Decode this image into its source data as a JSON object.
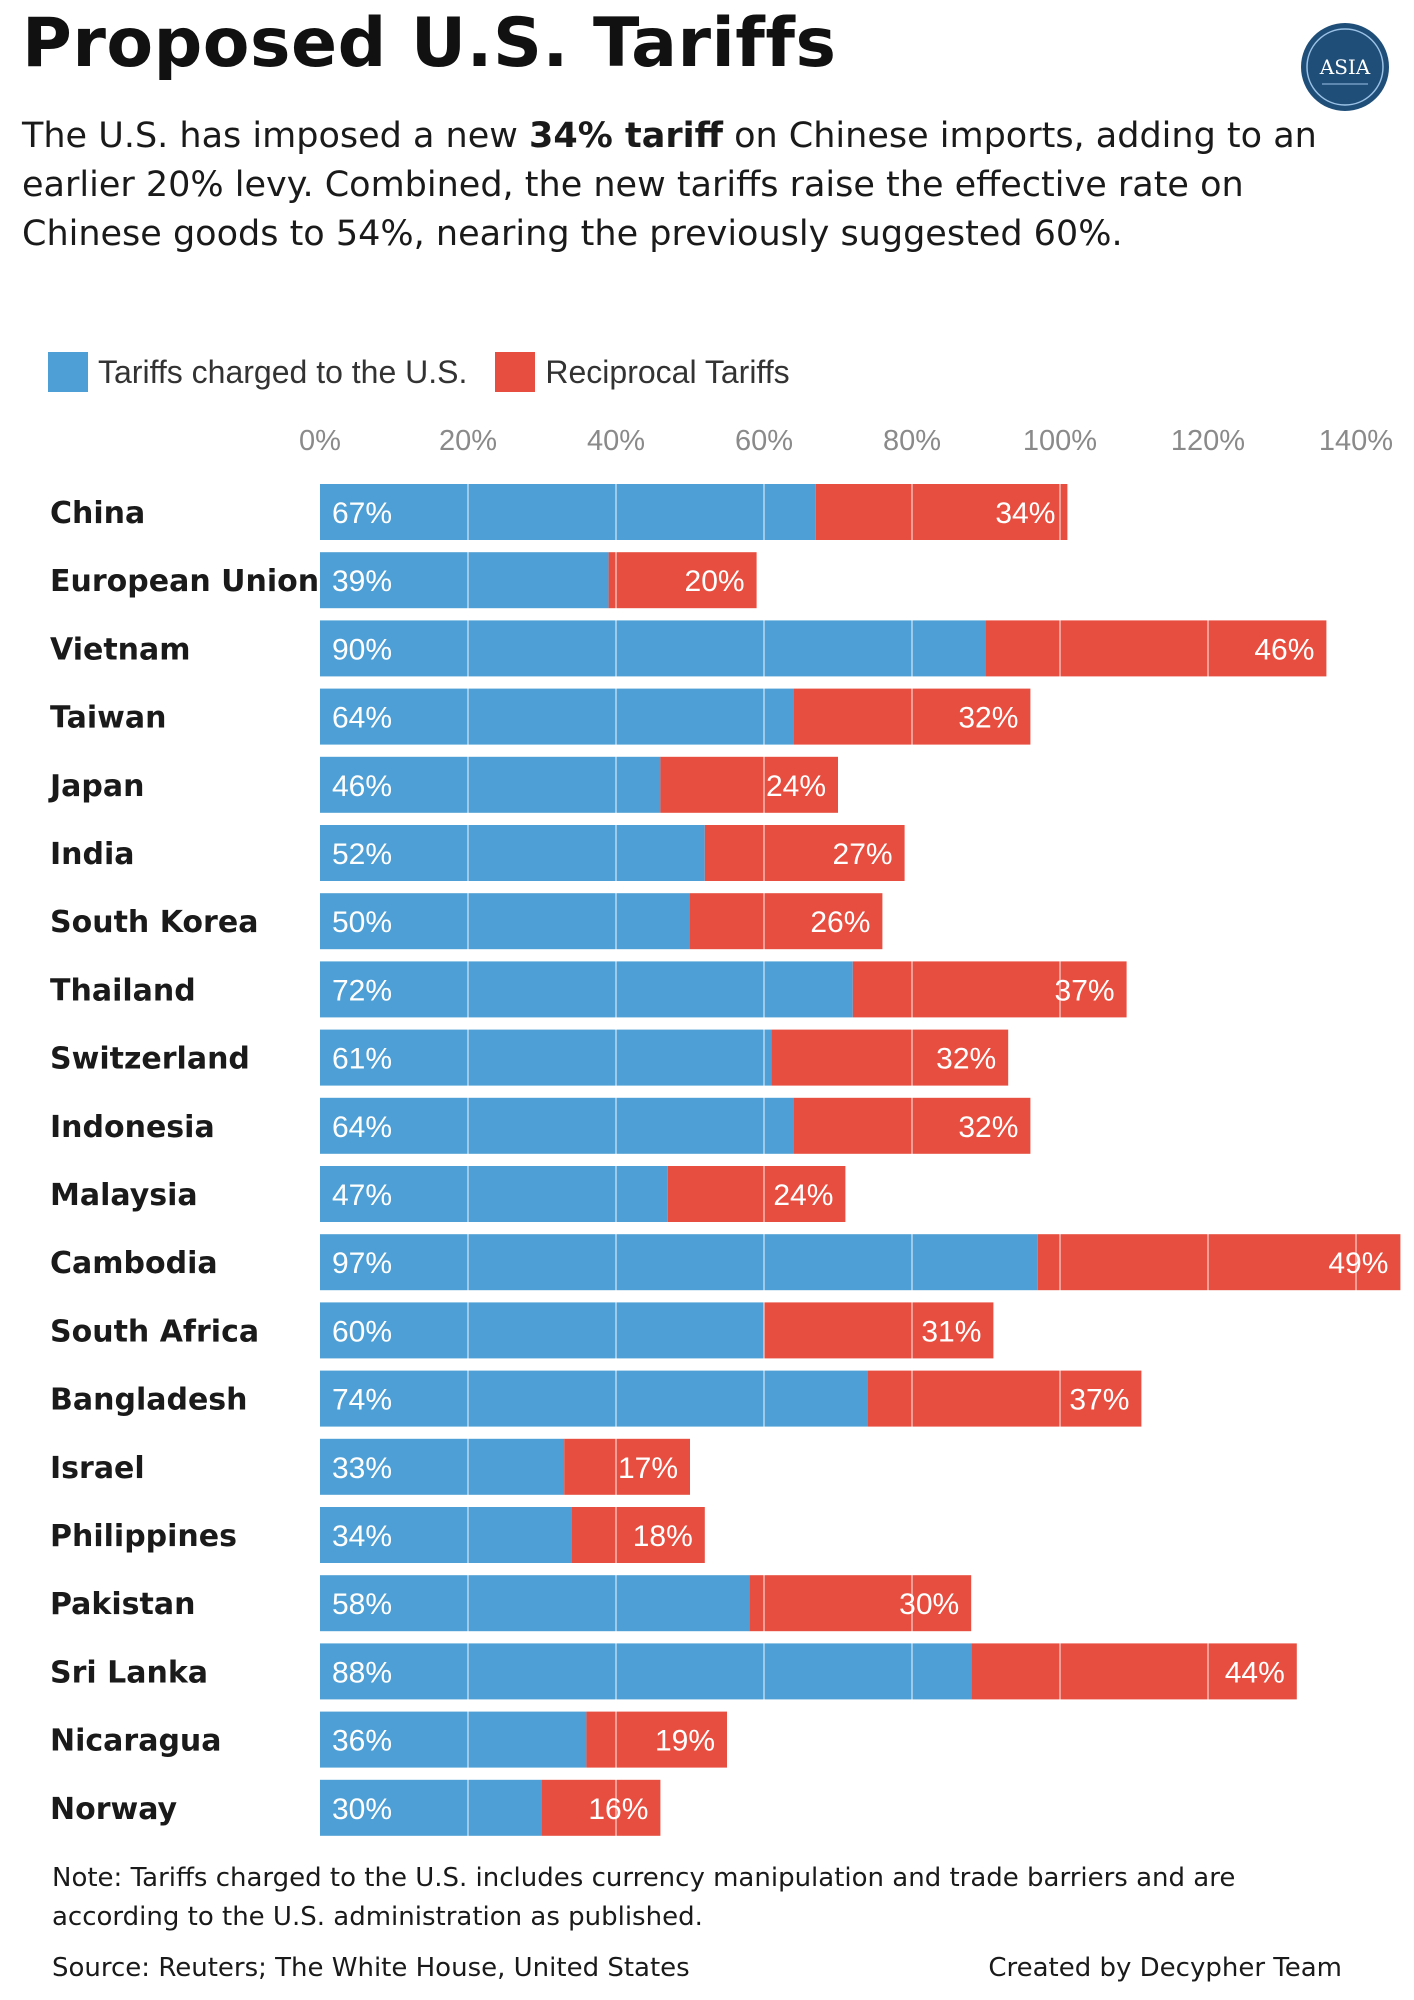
{
  "header": {
    "title": "Proposed U.S. Tariffs",
    "logo_text": "ASIA",
    "subtitle_part1": "The U.S. has imposed a new ",
    "subtitle_bold": "34% tariff",
    "subtitle_part2": " on Chinese imports, adding to an earlier 20% levy. Combined, the new tariffs raise the effective rate on Chinese goods to 54%, nearing the previously suggested 60%."
  },
  "colors": {
    "charged": "#4e9fd5",
    "reciprocal": "#e84e3f",
    "logo": "#1f4e79"
  },
  "chart_data": {
    "type": "bar",
    "orientation": "horizontal",
    "stacked": true,
    "xlim": [
      0,
      140
    ],
    "x_ticks": [
      "0%",
      "20%",
      "40%",
      "60%",
      "80%",
      "100%",
      "120%",
      "140%"
    ],
    "grid": true,
    "legend_placement": "top-left",
    "categories": [
      "China",
      "European Union",
      "Vietnam",
      "Taiwan",
      "Japan",
      "India",
      "South Korea",
      "Thailand",
      "Switzerland",
      "Indonesia",
      "Malaysia",
      "Cambodia",
      "South Africa",
      "Bangladesh",
      "Israel",
      "Philippines",
      "Pakistan",
      "Sri Lanka",
      "Nicaragua",
      "Norway"
    ],
    "series": [
      {
        "name": "Tariffs charged to the U.S.",
        "color": "#4e9fd5",
        "values": [
          67,
          39,
          90,
          64,
          46,
          52,
          50,
          72,
          61,
          64,
          47,
          97,
          60,
          74,
          33,
          34,
          58,
          88,
          36,
          30
        ],
        "labels": [
          "67%",
          "39%",
          "90%",
          "64%",
          "46%",
          "52%",
          "50%",
          "72%",
          "61%",
          "64%",
          "47%",
          "97%",
          "60%",
          "74%",
          "33%",
          "34%",
          "58%",
          "88%",
          "36%",
          "30%"
        ]
      },
      {
        "name": "Reciprocal Tariffs",
        "color": "#e84e3f",
        "values": [
          34,
          20,
          46,
          32,
          24,
          27,
          26,
          37,
          32,
          32,
          24,
          49,
          31,
          37,
          17,
          18,
          30,
          44,
          19,
          16
        ],
        "labels": [
          "34%",
          "20%",
          "46%",
          "32%",
          "24%",
          "27%",
          "26%",
          "37%",
          "32%",
          "32%",
          "24%",
          "49%",
          "31%",
          "37%",
          "17%",
          "18%",
          "30%",
          "44%",
          "19%",
          "16%"
        ]
      }
    ]
  },
  "footer": {
    "note": "Note:  Tariffs charged to the U.S. includes currency manipulation and trade barriers and are according to the U.S. administration as published.",
    "source": "Source: Reuters; The White House, United States",
    "credit": "Created by Decypher Team"
  }
}
